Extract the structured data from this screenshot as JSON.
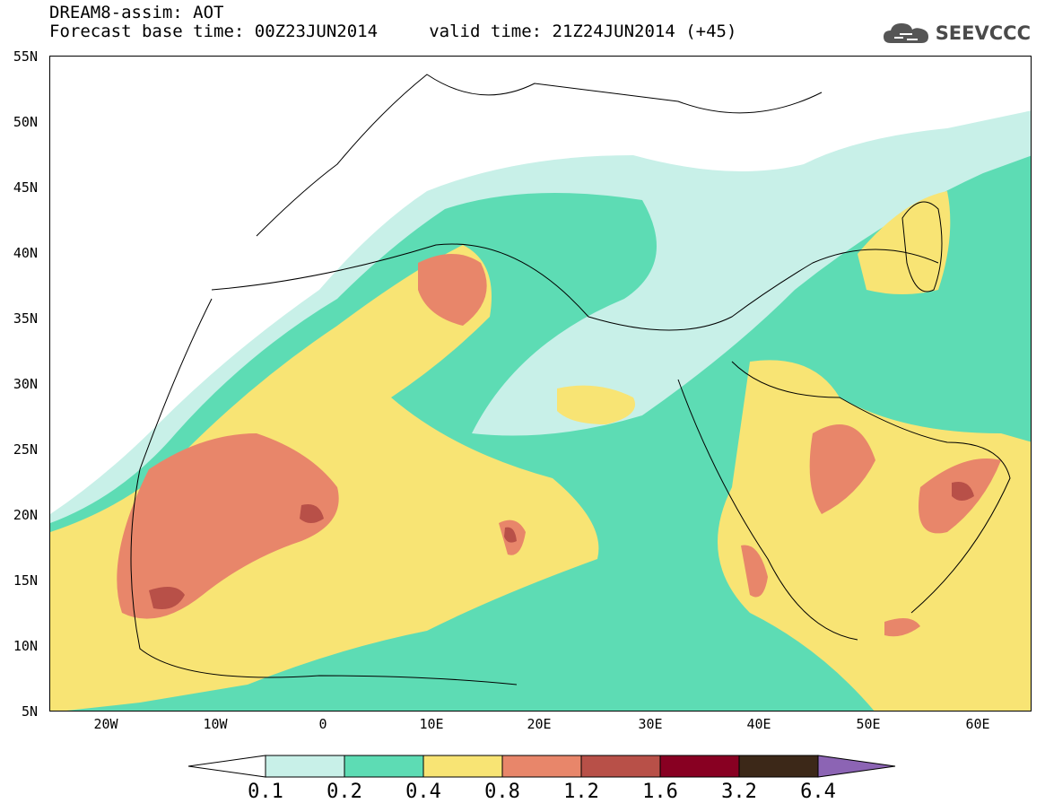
{
  "header": {
    "line1": "DREAM8-assim: AOT",
    "line2": "Forecast base time: 00Z23JUN2014     valid time: 21Z24JUN2014 (+45)"
  },
  "logo": {
    "text": "SEEVCCC",
    "icon": "cloud-icon",
    "color": "#555555"
  },
  "map": {
    "lon_range": [
      -25,
      65
    ],
    "lat_range": [
      5,
      55
    ],
    "y_labels": [
      "55N",
      "50N",
      "45N",
      "40N",
      "35N",
      "30N",
      "25N",
      "20N",
      "15N",
      "10N",
      "5N"
    ],
    "x_labels": [
      "20W",
      "10W",
      "0",
      "10E",
      "20E",
      "30E",
      "40E",
      "50E",
      "60E"
    ]
  },
  "colorbar": {
    "levels": [
      "0.1",
      "0.2",
      "0.4",
      "0.8",
      "1.2",
      "1.6",
      "3.2",
      "6.4"
    ],
    "colors": [
      "#c8f0e8",
      "#5ddcb4",
      "#f8e474",
      "#e8866a",
      "#b85048",
      "#880022",
      "#3c2818",
      "#8c64b4"
    ]
  }
}
